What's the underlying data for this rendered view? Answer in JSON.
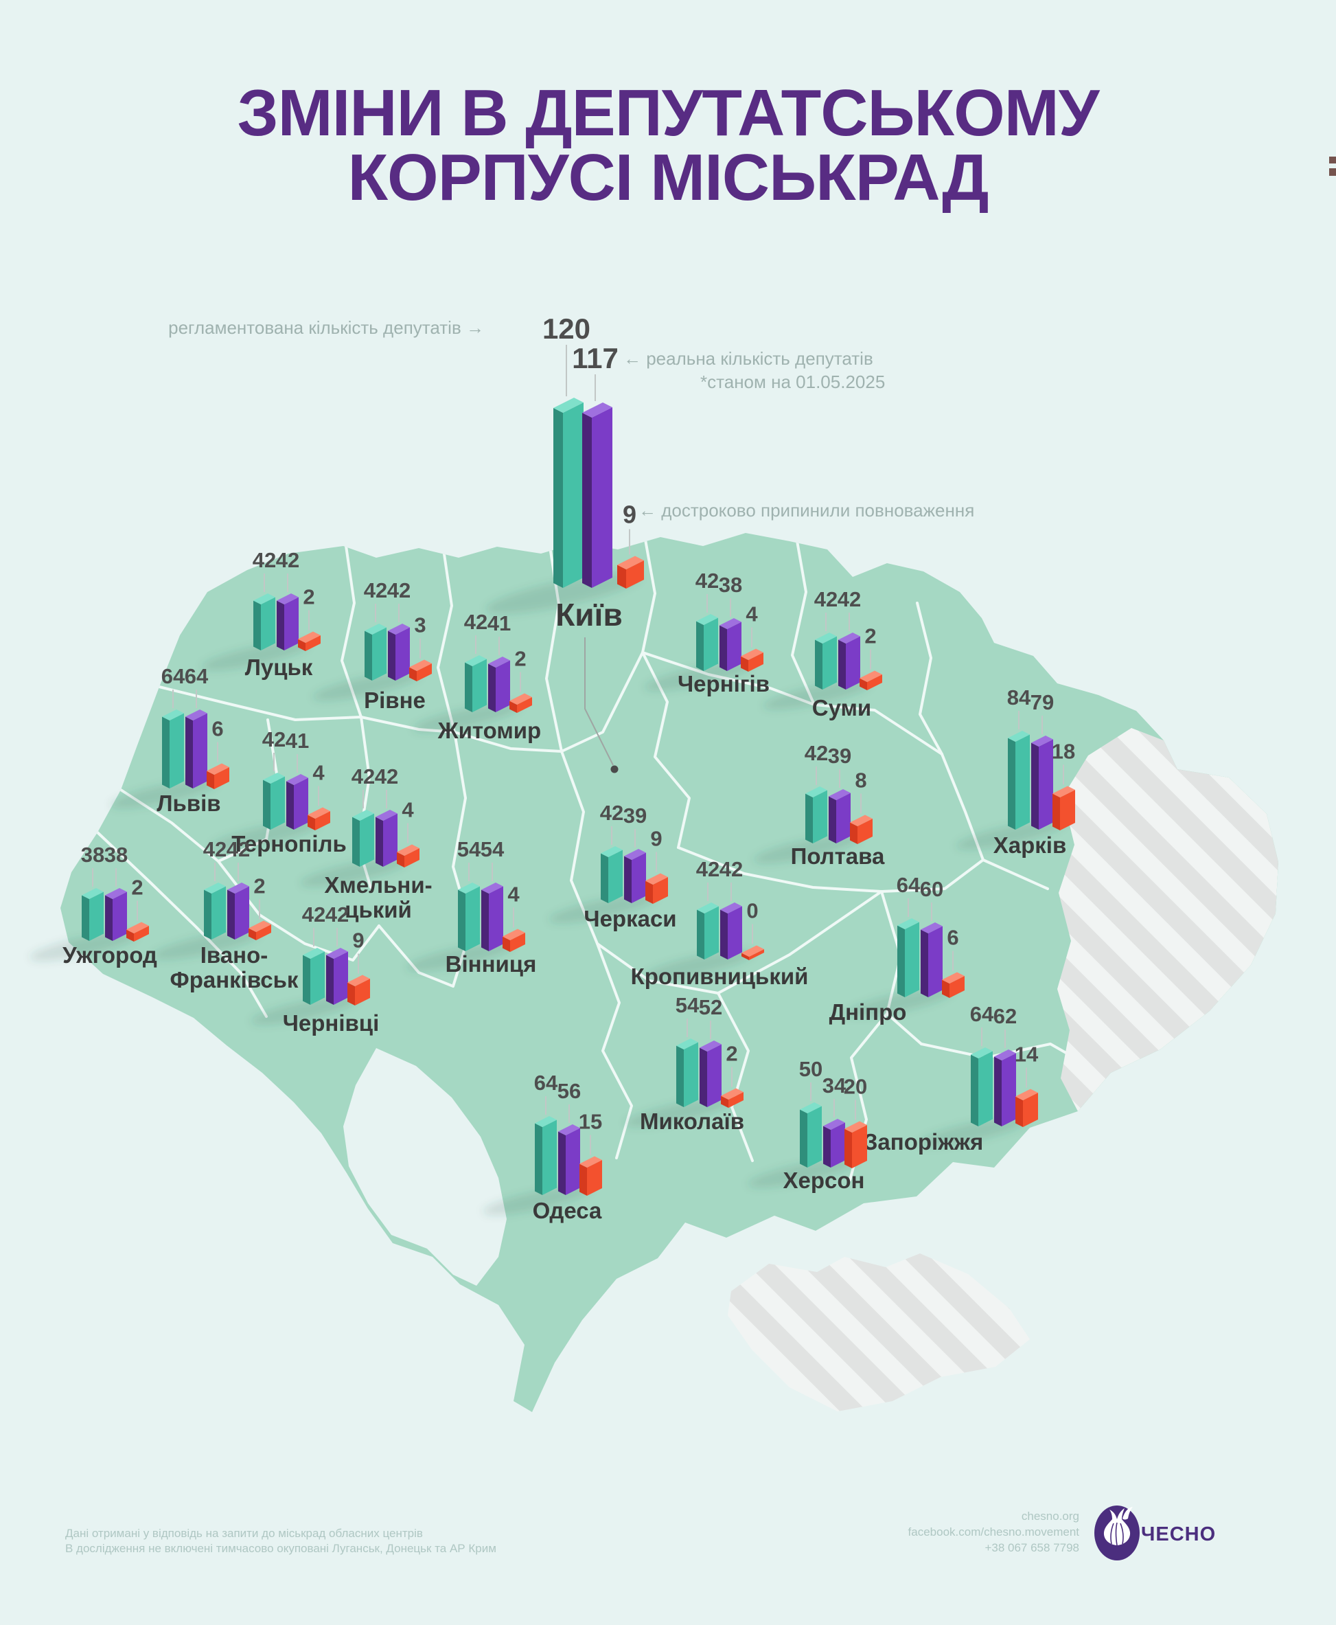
{
  "title": {
    "line1": "ЗМІНИ В ДЕПУТАТСЬКОМУ",
    "line2": "КОРПУСІ МІСЬКРАД"
  },
  "legend": {
    "regulated": "регламентована кількість депутатів →",
    "real": "← реальна кількість депутатів",
    "real_note": "*станом на 01.05.2025",
    "terminated": "← достроково припинили повноваження"
  },
  "cities": [
    {
      "name": "Київ",
      "regulated": 120,
      "real": 117,
      "terminated": 9
    },
    {
      "name": "Луцьк",
      "regulated": 42,
      "real": 42,
      "terminated": 2
    },
    {
      "name": "Рівне",
      "regulated": 42,
      "real": 42,
      "terminated": 3
    },
    {
      "name": "Житомир",
      "regulated": 42,
      "real": 41,
      "terminated": 2
    },
    {
      "name": "Чернігів",
      "regulated": 42,
      "real": 38,
      "terminated": 4
    },
    {
      "name": "Суми",
      "regulated": 42,
      "real": 42,
      "terminated": 2
    },
    {
      "name": "Львів",
      "regulated": 64,
      "real": 64,
      "terminated": 6
    },
    {
      "name": "Тернопіль",
      "regulated": 42,
      "real": 41,
      "terminated": 4
    },
    {
      "name": "Хмельницький",
      "regulated": 42,
      "real": 42,
      "terminated": 4
    },
    {
      "name": "Полтава",
      "regulated": 42,
      "real": 39,
      "terminated": 8
    },
    {
      "name": "Харків",
      "regulated": 84,
      "real": 79,
      "terminated": 18
    },
    {
      "name": "Ужгород",
      "regulated": 38,
      "real": 38,
      "terminated": 2
    },
    {
      "name": "Івано-Франківськ",
      "regulated": 42,
      "real": 42,
      "terminated": 2
    },
    {
      "name": "Чернівці",
      "regulated": 42,
      "real": 42,
      "terminated": 9
    },
    {
      "name": "Вінниця",
      "regulated": 54,
      "real": 54,
      "terminated": 4
    },
    {
      "name": "Черкаси",
      "regulated": 42,
      "real": 39,
      "terminated": 9
    },
    {
      "name": "Кропивницький",
      "regulated": 42,
      "real": 42,
      "terminated": 0
    },
    {
      "name": "Дніпро",
      "regulated": 64,
      "real": 60,
      "terminated": 6
    },
    {
      "name": "Запоріжжя",
      "regulated": 64,
      "real": 62,
      "terminated": 14
    },
    {
      "name": "Миколаїв",
      "regulated": 54,
      "real": 52,
      "terminated": 2
    },
    {
      "name": "Херсон",
      "regulated": 50,
      "real": 34,
      "terminated": 20
    },
    {
      "name": "Одеса",
      "regulated": 64,
      "real": 56,
      "terminated": 15
    }
  ],
  "footer": {
    "note_line1": "Дані отримані у відповідь на запити до міськрад обласних центрів",
    "note_line2": "В дослідження не включені тимчасово окуповані Луганськ, Донецьк та АР Крим",
    "website": "chesno.org",
    "facebook": "facebook.com/chesno.movement",
    "phone": "+38 067 658 7798",
    "brand": "ЧЕСНО"
  },
  "icons": {
    "logo": "garlic-icon"
  },
  "colors": {
    "background": "#E7F3F2",
    "title": "#582C83",
    "land": "#A5D8C3",
    "land_border": "#EFF9F6",
    "occupied_gray": "#E2E4E3",
    "city_label": "#3A3A3A",
    "value_text": "#4E4E4E",
    "annotation": "#9FB2AF",
    "footer_text": "#AFC7C3",
    "brand_purple": "#4B2E7E",
    "bars": {
      "teal": {
        "front": "#46C1A7",
        "left": "#2F8E7B",
        "top": "#7FE0CA"
      },
      "purple": {
        "front": "#7B3CC7",
        "left": "#4C2478",
        "top": "#9F70DF"
      },
      "red": {
        "front": "#F3512E",
        "left": "#D63A1E",
        "top": "#FB8E74"
      }
    }
  },
  "chart_data": {
    "type": "bar",
    "title": "Зміни в депутатському корпусі міськрад",
    "note": "*станом на 01.05.2025",
    "categories": [
      "Київ",
      "Луцьк",
      "Рівне",
      "Житомир",
      "Чернігів",
      "Суми",
      "Львів",
      "Тернопіль",
      "Хмельницький",
      "Полтава",
      "Харків",
      "Ужгород",
      "Івано-Франківськ",
      "Чернівці",
      "Вінниця",
      "Черкаси",
      "Кропивницький",
      "Дніпро",
      "Запоріжжя",
      "Миколаїв",
      "Херсон",
      "Одеса"
    ],
    "series": [
      {
        "name": "регламентована кількість депутатів",
        "color": "#46C1A7",
        "values": [
          120,
          42,
          42,
          42,
          42,
          42,
          64,
          42,
          42,
          42,
          84,
          38,
          42,
          42,
          54,
          42,
          42,
          64,
          64,
          54,
          50,
          64
        ]
      },
      {
        "name": "реальна кількість депутатів (станом на 01.05.2025)",
        "color": "#7B3CC7",
        "values": [
          117,
          42,
          42,
          41,
          38,
          42,
          64,
          41,
          42,
          39,
          79,
          38,
          42,
          42,
          54,
          39,
          42,
          60,
          62,
          52,
          34,
          56
        ]
      },
      {
        "name": "достроково припинили повноваження",
        "color": "#F3512E",
        "values": [
          9,
          2,
          3,
          2,
          4,
          2,
          6,
          4,
          4,
          8,
          18,
          2,
          2,
          9,
          4,
          9,
          0,
          6,
          14,
          2,
          20,
          15
        ]
      }
    ],
    "legend_position": "around Kyiv bars",
    "grid": false
  }
}
